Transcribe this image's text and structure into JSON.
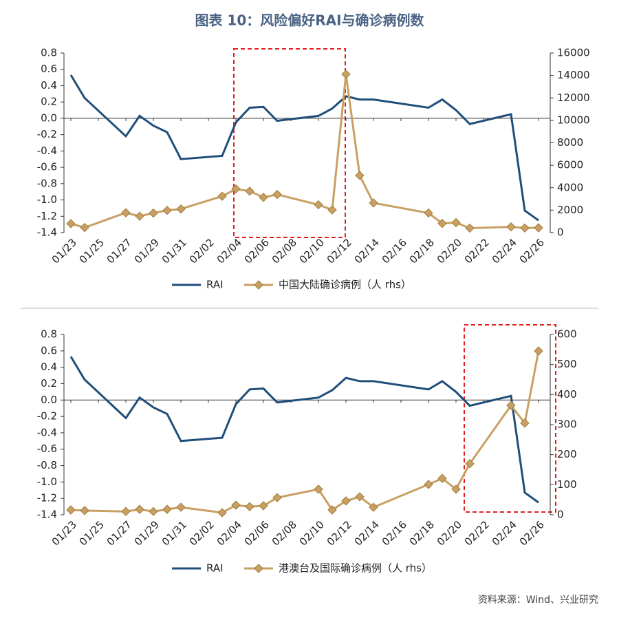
{
  "title": "图表 10：风险偏好RAI与确诊病例数",
  "source": "资料来源：Wind、兴业研究",
  "chart_data": [
    {
      "type": "line",
      "x": [
        "01/23",
        "01/24",
        "01/27",
        "01/28",
        "01/29",
        "01/30",
        "01/31",
        "02/03",
        "02/04",
        "02/05",
        "02/06",
        "02/07",
        "02/10",
        "02/11",
        "02/12",
        "02/13",
        "02/14",
        "02/18",
        "02/19",
        "02/20",
        "02/21",
        "02/24",
        "02/25",
        "02/26"
      ],
      "xticks": [
        "01/23",
        "01/25",
        "01/27",
        "01/29",
        "01/31",
        "02/02",
        "02/04",
        "02/06",
        "02/08",
        "02/10",
        "02/12",
        "02/14",
        "02/16",
        "02/18",
        "02/20",
        "02/22",
        "02/24",
        "02/26"
      ],
      "series": [
        {
          "name": "RAI",
          "color": "#1f4e79",
          "axis": "y",
          "values": [
            0.53,
            0.25,
            -0.22,
            0.03,
            -0.09,
            -0.17,
            -0.5,
            -0.46,
            -0.05,
            0.13,
            0.14,
            -0.03,
            0.03,
            0.12,
            0.27,
            0.23,
            0.23,
            0.13,
            0.23,
            0.1,
            -0.07,
            0.05,
            -1.13,
            -1.25
          ]
        },
        {
          "name": "中国大陆确诊病例（人 rhs）",
          "color": "#c9a063",
          "axis": "y2",
          "values": [
            800,
            450,
            1770,
            1460,
            1740,
            1980,
            2100,
            3240,
            3890,
            3690,
            3140,
            3400,
            2480,
            2020,
            14110,
            5090,
            2640,
            1750,
            820,
            890,
            400,
            510,
            410,
            430
          ]
        }
      ],
      "ylim": [
        -1.4,
        0.8
      ],
      "yticks": [
        {
          "value": -1.4,
          "label": "-1.4"
        },
        {
          "value": -1.2,
          "label": "-1.2"
        },
        {
          "value": -1,
          "label": "-1.0"
        },
        -0.8,
        -0.6,
        -0.4,
        -0.2,
        {
          "value": 0,
          "label": "0.0"
        },
        0.2,
        0.4,
        0.6,
        0.8
      ],
      "y2lim": [
        0,
        16000
      ],
      "y2ticks": [
        0,
        2000,
        4000,
        6000,
        8000,
        10000,
        12000,
        14000,
        16000
      ]
    },
    {
      "type": "line",
      "x": [
        "01/23",
        "01/24",
        "01/27",
        "01/28",
        "01/29",
        "01/30",
        "01/31",
        "02/03",
        "02/04",
        "02/05",
        "02/06",
        "02/07",
        "02/10",
        "02/11",
        "02/12",
        "02/13",
        "02/14",
        "02/18",
        "02/19",
        "02/20",
        "02/21",
        "02/24",
        "02/25",
        "02/26"
      ],
      "xticks": [
        "01/23",
        "01/25",
        "01/27",
        "01/29",
        "01/31",
        "02/02",
        "02/04",
        "02/06",
        "02/08",
        "02/10",
        "02/12",
        "02/14",
        "02/16",
        "02/18",
        "02/20",
        "02/22",
        "02/24",
        "02/26"
      ],
      "series": [
        {
          "name": "RAI",
          "color": "#1f4e79",
          "axis": "y",
          "values": [
            0.53,
            0.25,
            -0.22,
            0.03,
            -0.09,
            -0.17,
            -0.5,
            -0.46,
            -0.05,
            0.13,
            0.14,
            -0.03,
            0.03,
            0.12,
            0.27,
            0.23,
            0.23,
            0.13,
            0.23,
            0.1,
            -0.07,
            0.05,
            -1.13,
            -1.25
          ]
        },
        {
          "name": "港澳台及国际确诊病例（人 rhs）",
          "color": "#c9a063",
          "axis": "y2",
          "values": [
            16,
            14,
            11,
            18,
            11,
            18,
            25,
            7,
            32,
            27,
            30,
            57,
            85,
            16,
            46,
            60,
            25,
            101,
            121,
            85,
            170,
            364,
            305,
            545
          ]
        }
      ],
      "ylim": [
        -1.4,
        0.8
      ],
      "yticks": [
        {
          "value": -1.4,
          "label": "-1.4"
        },
        {
          "value": -1.2,
          "label": "-1.2"
        },
        {
          "value": -1,
          "label": "-1.0"
        },
        -0.8,
        -0.6,
        -0.4,
        -0.2,
        {
          "value": 0,
          "label": "0.0"
        },
        0.2,
        0.4,
        0.6,
        0.8
      ],
      "y2lim": [
        0,
        600
      ],
      "y2ticks": [
        0,
        100,
        200,
        300,
        400,
        500,
        600
      ]
    }
  ]
}
